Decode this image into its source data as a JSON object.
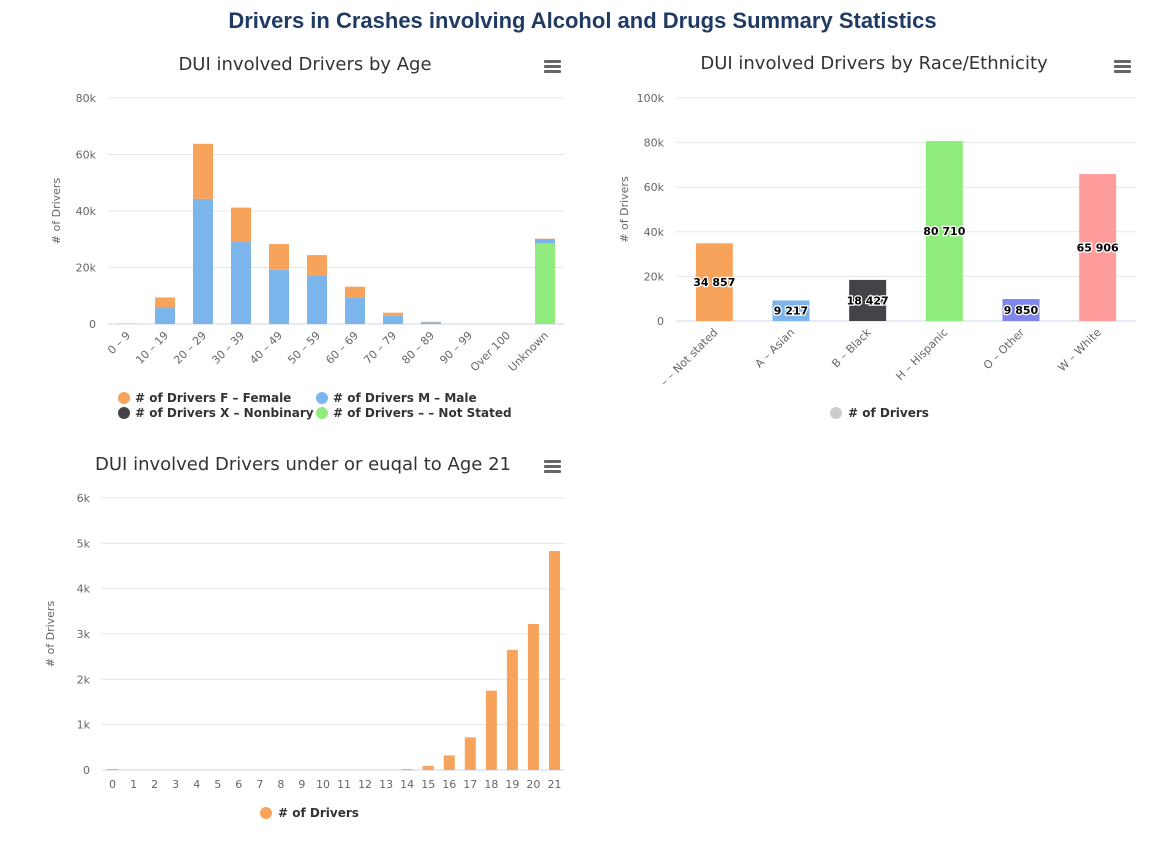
{
  "page": {
    "title": "Drivers in Crashes involving Alcohol and Drugs Summary Statistics"
  },
  "colors": {
    "female": "#f7a35c",
    "male": "#7cb5ec",
    "nonbinary": "#434348",
    "not_stated": "#90ed7d",
    "drivers_bar": "#f7a35c",
    "legend_grey": "#cccccc",
    "title_blue": "#1f3b63"
  },
  "chart_data": [
    {
      "id": "age",
      "type": "bar",
      "stacked": true,
      "title": "DUI involved Drivers by Age",
      "ylabel": "# of Drivers",
      "ylim": [
        0,
        80000
      ],
      "yticks": [
        "0",
        "20k",
        "40k",
        "60k",
        "80k"
      ],
      "categories": [
        "0 – 9",
        "10 – 19",
        "20 – 29",
        "30 – 39",
        "40 – 49",
        "50 – 59",
        "60 – 69",
        "70 – 79",
        "80 – 89",
        "90 – 99",
        "Over 100",
        "Unknown"
      ],
      "series": [
        {
          "name": "# of Drivers F – Female",
          "color": "#f7a35c",
          "values": [
            50,
            3400,
            19500,
            12200,
            9100,
            7200,
            3700,
            1100,
            200,
            20,
            0,
            100
          ]
        },
        {
          "name": "# of Drivers M – Male",
          "color": "#7cb5ec",
          "values": [
            100,
            6000,
            44300,
            29000,
            19200,
            17200,
            9500,
            2900,
            600,
            60,
            0,
            1600
          ]
        },
        {
          "name": "# of Drivers X – Nonbinary",
          "color": "#434348",
          "values": [
            0,
            0,
            0,
            0,
            0,
            0,
            0,
            0,
            0,
            0,
            0,
            0
          ]
        },
        {
          "name": "# of Drivers – – Not Stated",
          "color": "#90ed7d",
          "values": [
            0,
            0,
            0,
            0,
            0,
            0,
            0,
            0,
            0,
            0,
            0,
            28500
          ]
        }
      ],
      "legend": "bottom"
    },
    {
      "id": "race",
      "type": "bar",
      "title": "DUI involved Drivers by Race/Ethnicity",
      "ylabel": "# of Drivers",
      "ylim": [
        0,
        100000
      ],
      "yticks": [
        "0",
        "20k",
        "40k",
        "60k",
        "80k",
        "100k"
      ],
      "categories": [
        "– – Not stated",
        "A – Asian",
        "B – Black",
        "H – Hispanic",
        "O – Other",
        "W – White"
      ],
      "values": [
        34857,
        9217,
        18427,
        80710,
        9850,
        65906
      ],
      "data_labels": [
        "34 857",
        "9 217",
        "18 427",
        "80 710",
        "9 850",
        "65 906"
      ],
      "colors": [
        "#f7a35c",
        "#7cb5ec",
        "#434348",
        "#90ed7d",
        "#8085e9",
        "#ff9d9d"
      ],
      "series": [
        {
          "name": "# of Drivers"
        }
      ],
      "legend": "bottom"
    },
    {
      "id": "under21",
      "type": "bar",
      "title": "DUI involved Drivers under or euqal to Age 21",
      "ylabel": "# of Drivers",
      "ylim": [
        0,
        6000
      ],
      "yticks": [
        "0",
        "1k",
        "2k",
        "3k",
        "4k",
        "5k",
        "6k"
      ],
      "categories": [
        "0",
        "1",
        "2",
        "3",
        "4",
        "5",
        "6",
        "7",
        "8",
        "9",
        "10",
        "11",
        "12",
        "13",
        "14",
        "15",
        "16",
        "17",
        "18",
        "19",
        "20",
        "21"
      ],
      "values": [
        20,
        0,
        0,
        0,
        0,
        0,
        0,
        0,
        0,
        0,
        0,
        0,
        2,
        4,
        20,
        90,
        320,
        720,
        1750,
        2650,
        3220,
        4830
      ],
      "series": [
        {
          "name": "# of Drivers"
        }
      ],
      "legend": "bottom"
    }
  ]
}
